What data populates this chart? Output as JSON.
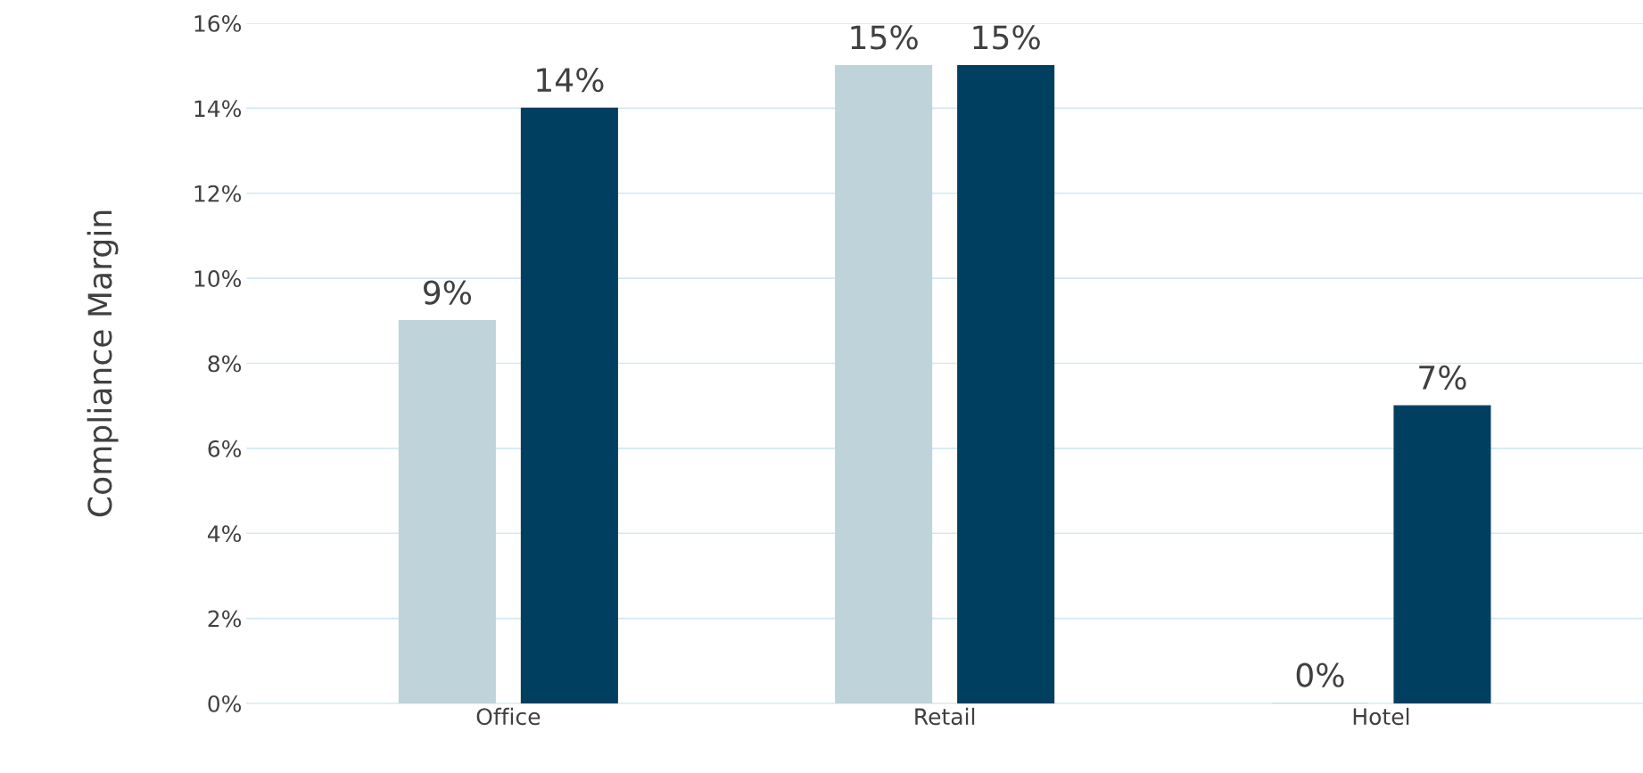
{
  "chart_data": {
    "type": "bar",
    "ylabel": "Compliance Margin",
    "categories": [
      "Office",
      "Retail",
      "Hotel"
    ],
    "series": [
      {
        "color": "#bfd3da",
        "values": [
          9,
          15,
          0
        ],
        "value_labels": [
          "9%",
          "15%",
          "0%"
        ]
      },
      {
        "color": "#003f5f",
        "values": [
          14,
          15,
          7
        ],
        "value_labels": [
          "14%",
          "15%",
          "7%"
        ]
      }
    ],
    "ylim": [
      0,
      16
    ],
    "yticks": [
      {
        "value": 0,
        "label": "0%"
      },
      {
        "value": 2,
        "label": "2%"
      },
      {
        "value": 4,
        "label": "4%"
      },
      {
        "value": 6,
        "label": "6%"
      },
      {
        "value": 8,
        "label": "8%"
      },
      {
        "value": 10,
        "label": "10%"
      },
      {
        "value": 12,
        "label": "12%"
      },
      {
        "value": 14,
        "label": "14%"
      },
      {
        "value": 16,
        "label": "16%"
      }
    ],
    "grid": "y",
    "legend": false
  }
}
